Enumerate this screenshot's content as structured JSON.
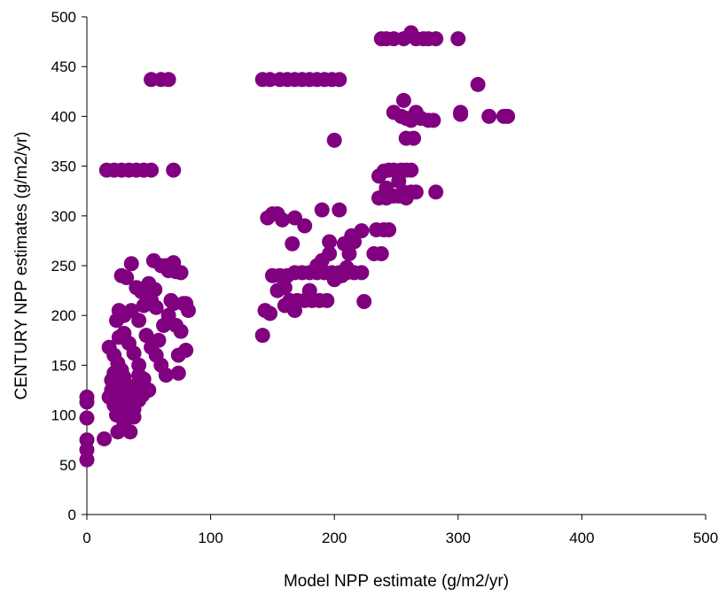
{
  "chart_data": {
    "type": "scatter",
    "title": "",
    "xlabel": "Model NPP estimate (g/m2/yr)",
    "ylabel": "CENTURY NPP estimates (g/m2/yr)",
    "xlim": [
      0,
      500
    ],
    "ylim": [
      0,
      500
    ],
    "xticks": [
      "0",
      "100",
      "200",
      "300",
      "400",
      "500"
    ],
    "yticks": [
      "0",
      "50",
      "100",
      "150",
      "200",
      "250",
      "300",
      "350",
      "400",
      "450",
      "500"
    ],
    "grid": false,
    "legend": "none",
    "marker_color": "#800080",
    "series": [
      {
        "points": [
          [
            0,
            55
          ],
          [
            0,
            65
          ],
          [
            0,
            75
          ],
          [
            0,
            97
          ],
          [
            0,
            113
          ],
          [
            0,
            118
          ],
          [
            14,
            76
          ],
          [
            20,
            125
          ],
          [
            18,
            118
          ],
          [
            22,
            110
          ],
          [
            24,
            100
          ],
          [
            25,
            83
          ],
          [
            35,
            83
          ],
          [
            30,
            92
          ],
          [
            38,
            98
          ],
          [
            42,
            115
          ],
          [
            45,
            120
          ],
          [
            18,
            168
          ],
          [
            22,
            160
          ],
          [
            25,
            152
          ],
          [
            28,
            145
          ],
          [
            30,
            138
          ],
          [
            32,
            130
          ],
          [
            34,
            122
          ],
          [
            36,
            114
          ],
          [
            38,
            106
          ],
          [
            40,
            130
          ],
          [
            42,
            140
          ],
          [
            26,
            178
          ],
          [
            30,
            182
          ],
          [
            34,
            172
          ],
          [
            38,
            162
          ],
          [
            42,
            150
          ],
          [
            46,
            136
          ],
          [
            50,
            125
          ],
          [
            20,
            135
          ],
          [
            22,
            142
          ],
          [
            26,
            128
          ],
          [
            28,
            118
          ],
          [
            32,
            108
          ],
          [
            36,
            100
          ],
          [
            24,
            195
          ],
          [
            26,
            205
          ],
          [
            30,
            200
          ],
          [
            36,
            205
          ],
          [
            42,
            195
          ],
          [
            48,
            180
          ],
          [
            52,
            168
          ],
          [
            56,
            160
          ],
          [
            60,
            150
          ],
          [
            64,
            140
          ],
          [
            58,
            175
          ],
          [
            62,
            190
          ],
          [
            66,
            200
          ],
          [
            70,
            212
          ],
          [
            72,
            190
          ],
          [
            76,
            184
          ],
          [
            74,
            160
          ],
          [
            74,
            142
          ],
          [
            80,
            165
          ],
          [
            82,
            205
          ],
          [
            80,
            212
          ],
          [
            28,
            240
          ],
          [
            32,
            238
          ],
          [
            36,
            252
          ],
          [
            40,
            228
          ],
          [
            44,
            224
          ],
          [
            50,
            232
          ],
          [
            55,
            226
          ],
          [
            54,
            255
          ],
          [
            60,
            250
          ],
          [
            64,
            250
          ],
          [
            66,
            245
          ],
          [
            70,
            253
          ],
          [
            72,
            244
          ],
          [
            76,
            243
          ],
          [
            78,
            212
          ],
          [
            68,
            215
          ],
          [
            56,
            208
          ],
          [
            52,
            215
          ],
          [
            46,
            210
          ],
          [
            16,
            346
          ],
          [
            22,
            346
          ],
          [
            28,
            346
          ],
          [
            34,
            346
          ],
          [
            40,
            346
          ],
          [
            46,
            346
          ],
          [
            52,
            346
          ],
          [
            70,
            346
          ],
          [
            52,
            437
          ],
          [
            60,
            437
          ],
          [
            66,
            437
          ],
          [
            142,
            180
          ],
          [
            144,
            205
          ],
          [
            148,
            202
          ],
          [
            146,
            298
          ],
          [
            150,
            302
          ],
          [
            154,
            302
          ],
          [
            158,
            296
          ],
          [
            150,
            240
          ],
          [
            156,
            240
          ],
          [
            162,
            240
          ],
          [
            168,
            243
          ],
          [
            174,
            243
          ],
          [
            180,
            243
          ],
          [
            186,
            243
          ],
          [
            192,
            243
          ],
          [
            198,
            243
          ],
          [
            204,
            243
          ],
          [
            210,
            243
          ],
          [
            216,
            243
          ],
          [
            222,
            243
          ],
          [
            154,
            225
          ],
          [
            160,
            228
          ],
          [
            164,
            215
          ],
          [
            170,
            215
          ],
          [
            176,
            215
          ],
          [
            182,
            215
          ],
          [
            188,
            215
          ],
          [
            194,
            215
          ],
          [
            160,
            210
          ],
          [
            168,
            205
          ],
          [
            180,
            225
          ],
          [
            186,
            250
          ],
          [
            190,
            255
          ],
          [
            196,
            262
          ],
          [
            200,
            236
          ],
          [
            206,
            240
          ],
          [
            210,
            248
          ],
          [
            212,
            262
          ],
          [
            216,
            274
          ],
          [
            222,
            285
          ],
          [
            224,
            214
          ],
          [
            166,
            272
          ],
          [
            168,
            298
          ],
          [
            176,
            290
          ],
          [
            190,
            306
          ],
          [
            196,
            274
          ],
          [
            204,
            306
          ],
          [
            208,
            272
          ],
          [
            214,
            280
          ],
          [
            200,
            376
          ],
          [
            142,
            437
          ],
          [
            148,
            437
          ],
          [
            156,
            437
          ],
          [
            162,
            437
          ],
          [
            168,
            437
          ],
          [
            174,
            437
          ],
          [
            180,
            437
          ],
          [
            186,
            437
          ],
          [
            192,
            437
          ],
          [
            198,
            437
          ],
          [
            204,
            437
          ],
          [
            232,
            262
          ],
          [
            238,
            262
          ],
          [
            234,
            286
          ],
          [
            240,
            286
          ],
          [
            244,
            286
          ],
          [
            236,
            318
          ],
          [
            242,
            318
          ],
          [
            248,
            320
          ],
          [
            252,
            320
          ],
          [
            256,
            324
          ],
          [
            258,
            318
          ],
          [
            262,
            324
          ],
          [
            266,
            324
          ],
          [
            236,
            340
          ],
          [
            240,
            345
          ],
          [
            244,
            346
          ],
          [
            248,
            346
          ],
          [
            254,
            346
          ],
          [
            258,
            346
          ],
          [
            262,
            346
          ],
          [
            242,
            328
          ],
          [
            252,
            335
          ],
          [
            282,
            324
          ],
          [
            248,
            404
          ],
          [
            254,
            400
          ],
          [
            256,
            416
          ],
          [
            258,
            398
          ],
          [
            262,
            396
          ],
          [
            266,
            404
          ],
          [
            270,
            398
          ],
          [
            276,
            396
          ],
          [
            280,
            396
          ],
          [
            258,
            378
          ],
          [
            264,
            378
          ],
          [
            302,
            402
          ],
          [
            302,
            404
          ],
          [
            316,
            432
          ],
          [
            325,
            400
          ],
          [
            337,
            400
          ],
          [
            340,
            400
          ],
          [
            238,
            478
          ],
          [
            242,
            478
          ],
          [
            248,
            478
          ],
          [
            256,
            478
          ],
          [
            262,
            484
          ],
          [
            266,
            478
          ],
          [
            272,
            478
          ],
          [
            276,
            478
          ],
          [
            282,
            478
          ],
          [
            300,
            478
          ]
        ]
      }
    ]
  }
}
